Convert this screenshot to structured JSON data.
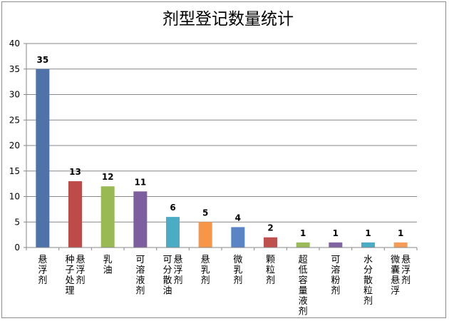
{
  "chart_data": {
    "type": "bar",
    "title": "剂型登记数量统计",
    "xlabel": "",
    "ylabel": "",
    "ylim": [
      0,
      40
    ],
    "yticks": [
      0,
      5,
      10,
      15,
      20,
      25,
      30,
      35,
      40
    ],
    "grid": true,
    "legend": "none",
    "categories": [
      [
        "悬浮剂"
      ],
      [
        "种子处理",
        "悬浮剂"
      ],
      [
        "乳油"
      ],
      [
        "可溶液剂"
      ],
      [
        "可分散油",
        "悬浮剂"
      ],
      [
        "悬乳剂"
      ],
      [
        "微乳剂"
      ],
      [
        "颗粒剂"
      ],
      [
        "超低容量液剂"
      ],
      [
        "可溶粉剂"
      ],
      [
        "水分散粒剂"
      ],
      [
        "微囊悬浮",
        "悬浮剂"
      ]
    ],
    "values": [
      35,
      13,
      12,
      11,
      6,
      5,
      4,
      2,
      1,
      1,
      1,
      1
    ],
    "colors": [
      "#4f73a8",
      "#be4b48",
      "#98b954",
      "#7d5fa0",
      "#4aacc5",
      "#f79646",
      "#5b84c4",
      "#c0504d",
      "#9bbb59",
      "#8064a2",
      "#4bacc6",
      "#f59d56"
    ]
  }
}
